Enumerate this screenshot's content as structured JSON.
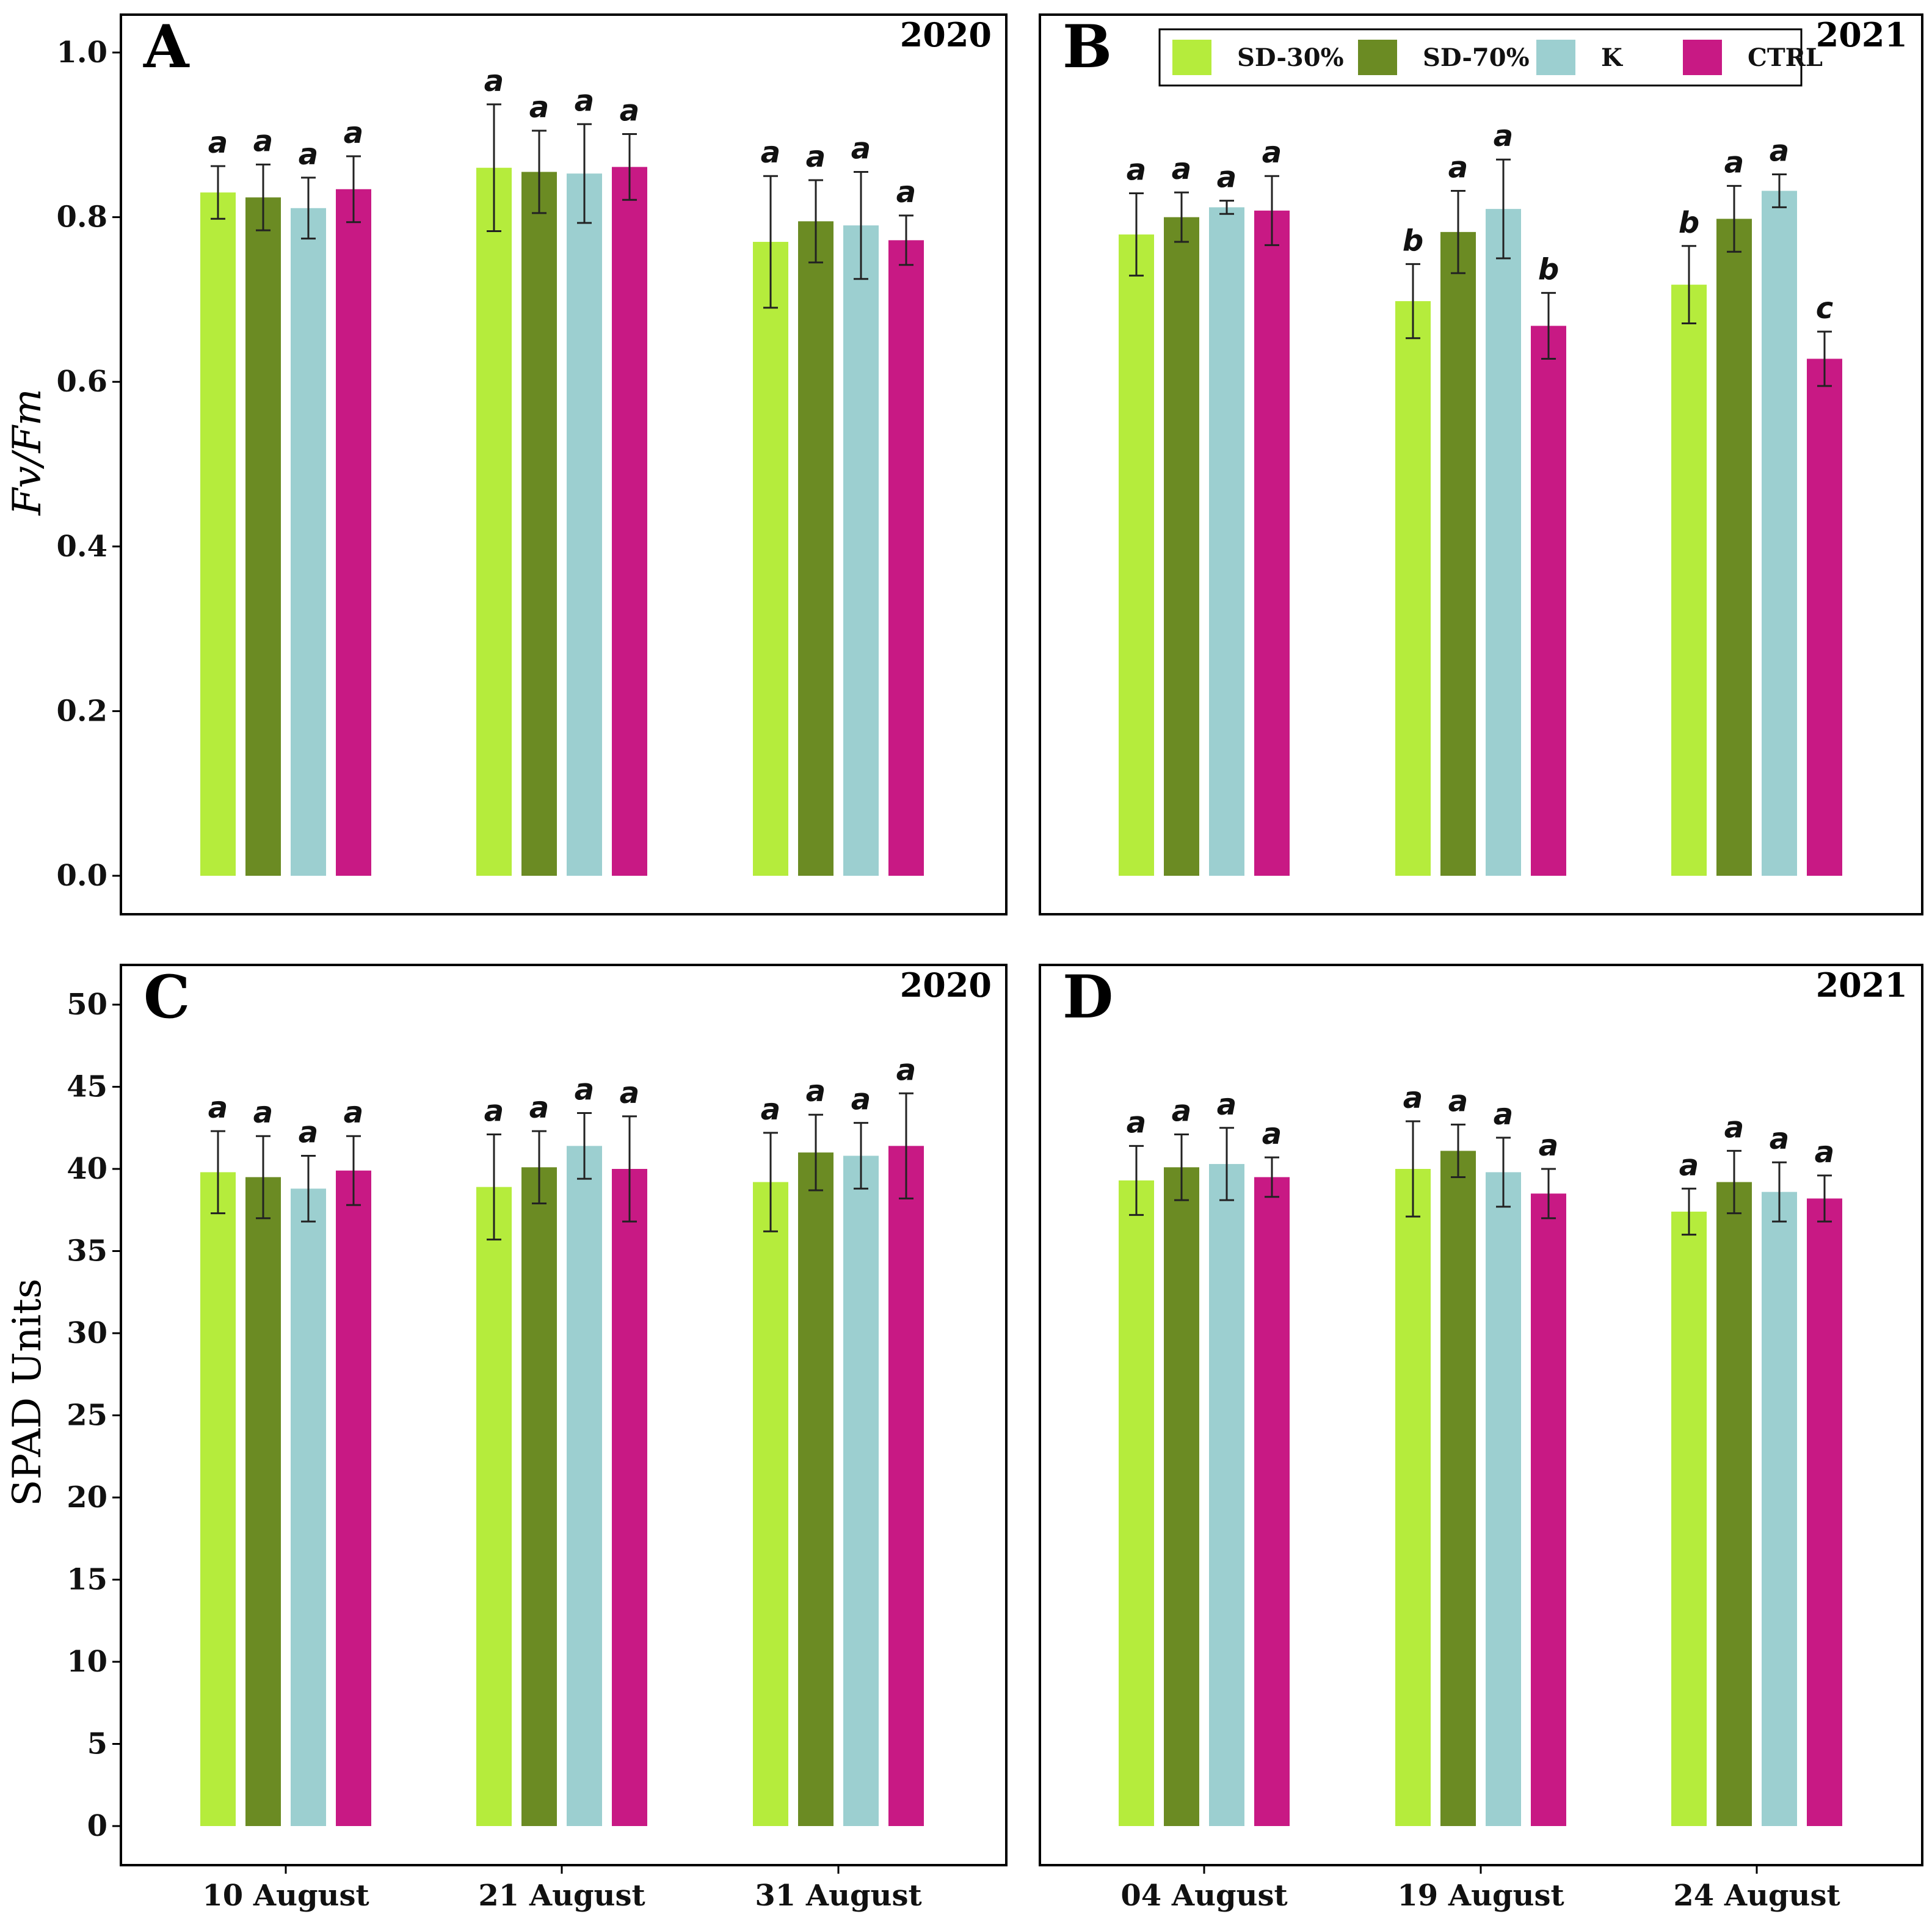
{
  "legend": [
    {
      "label": "SD-30%",
      "color": "#b5ec3c"
    },
    {
      "label": "SD-70%",
      "color": "#6b8b23"
    },
    {
      "label": "K",
      "color": "#9ccfd0"
    },
    {
      "label": "CTRL",
      "color": "#c81984"
    }
  ],
  "axis_titles": {
    "top": {
      "italic": "Fv/Fm"
    },
    "bottom": {
      "text": "SPAD Units"
    }
  },
  "chart_data": [
    {
      "type": "bar",
      "panel": "A",
      "year": "2020",
      "categories": [
        "10 August",
        "21 August",
        "31 August"
      ],
      "ylim": [
        0,
        1.0
      ],
      "yticks": [
        "0.0",
        "0.2",
        "0.4",
        "0.6",
        "0.8",
        "1.0"
      ],
      "ylabel": "Fv/Fm",
      "series": [
        {
          "name": "SD-30%",
          "values": [
            0.83,
            0.86,
            0.77
          ],
          "errors": [
            0.032,
            0.077,
            0.08
          ],
          "letters": [
            "a",
            "a",
            "a"
          ]
        },
        {
          "name": "SD-70%",
          "values": [
            0.824,
            0.855,
            0.795
          ],
          "errors": [
            0.04,
            0.05,
            0.05
          ],
          "letters": [
            "a",
            "a",
            "a"
          ]
        },
        {
          "name": "K",
          "values": [
            0.811,
            0.853,
            0.79
          ],
          "errors": [
            0.037,
            0.06,
            0.065
          ],
          "letters": [
            "a",
            "a",
            "a"
          ]
        },
        {
          "name": "CTRL",
          "values": [
            0.834,
            0.861,
            0.772
          ],
          "errors": [
            0.04,
            0.04,
            0.03
          ],
          "letters": [
            "a",
            "a",
            "a"
          ]
        }
      ]
    },
    {
      "type": "bar",
      "panel": "B",
      "year": "2021",
      "categories": [
        "04 August",
        "19 August",
        "24 August"
      ],
      "ylim": [
        0,
        1.0
      ],
      "yticks": [
        "0.0",
        "0.2",
        "0.4",
        "0.6",
        "0.8",
        "1.0"
      ],
      "ylabel": "Fv/Fm",
      "series": [
        {
          "name": "SD-30%",
          "values": [
            0.779,
            0.698,
            0.718
          ],
          "errors": [
            0.05,
            0.045,
            0.047
          ],
          "letters": [
            "a",
            "b",
            "b"
          ]
        },
        {
          "name": "SD-70%",
          "values": [
            0.8,
            0.782,
            0.798
          ],
          "errors": [
            0.03,
            0.05,
            0.04
          ],
          "letters": [
            "a",
            "a",
            "a"
          ]
        },
        {
          "name": "K",
          "values": [
            0.812,
            0.81,
            0.832
          ],
          "errors": [
            0.008,
            0.06,
            0.02
          ],
          "letters": [
            "a",
            "a",
            "a"
          ]
        },
        {
          "name": "CTRL",
          "values": [
            0.808,
            0.668,
            0.628
          ],
          "errors": [
            0.042,
            0.04,
            0.033
          ],
          "letters": [
            "a",
            "b",
            "c"
          ]
        }
      ]
    },
    {
      "type": "bar",
      "panel": "C",
      "year": "2020",
      "categories": [
        "10 August",
        "21 August",
        "31 August"
      ],
      "ylim": [
        0,
        50
      ],
      "yticks": [
        "0",
        "5",
        "10",
        "15",
        "20",
        "25",
        "30",
        "35",
        "40",
        "45",
        "50"
      ],
      "ylabel": "SPAD Units",
      "series": [
        {
          "name": "SD-30%",
          "values": [
            39.8,
            38.9,
            39.2
          ],
          "errors": [
            2.5,
            3.2,
            3.0
          ],
          "letters": [
            "a",
            "a",
            "a"
          ]
        },
        {
          "name": "SD-70%",
          "values": [
            39.5,
            40.1,
            41.0
          ],
          "errors": [
            2.5,
            2.2,
            2.3
          ],
          "letters": [
            "a",
            "a",
            "a"
          ]
        },
        {
          "name": "K",
          "values": [
            38.8,
            41.4,
            40.8
          ],
          "errors": [
            2.0,
            2.0,
            2.0
          ],
          "letters": [
            "a",
            "a",
            "a"
          ]
        },
        {
          "name": "CTRL",
          "values": [
            39.9,
            40.0,
            41.4
          ],
          "errors": [
            2.1,
            3.2,
            3.2
          ],
          "letters": [
            "a",
            "a",
            "a"
          ]
        }
      ]
    },
    {
      "type": "bar",
      "panel": "D",
      "year": "2021",
      "categories": [
        "04 August",
        "19 August",
        "24 August"
      ],
      "ylim": [
        0,
        50
      ],
      "yticks": [
        "0",
        "5",
        "10",
        "15",
        "20",
        "25",
        "30",
        "35",
        "40",
        "45",
        "50"
      ],
      "ylabel": "SPAD Units",
      "series": [
        {
          "name": "SD-30%",
          "values": [
            39.3,
            40.0,
            37.4
          ],
          "errors": [
            2.1,
            2.9,
            1.4
          ],
          "letters": [
            "a",
            "a",
            "a"
          ]
        },
        {
          "name": "SD-70%",
          "values": [
            40.1,
            41.1,
            39.2
          ],
          "errors": [
            2.0,
            1.6,
            1.9
          ],
          "letters": [
            "a",
            "a",
            "a"
          ]
        },
        {
          "name": "K",
          "values": [
            40.3,
            39.8,
            38.6
          ],
          "errors": [
            2.2,
            2.1,
            1.8
          ],
          "letters": [
            "a",
            "a",
            "a"
          ]
        },
        {
          "name": "CTRL",
          "values": [
            39.5,
            38.5,
            38.2
          ],
          "errors": [
            1.2,
            1.5,
            1.4
          ],
          "letters": [
            "a",
            "a",
            "a"
          ]
        }
      ]
    }
  ]
}
